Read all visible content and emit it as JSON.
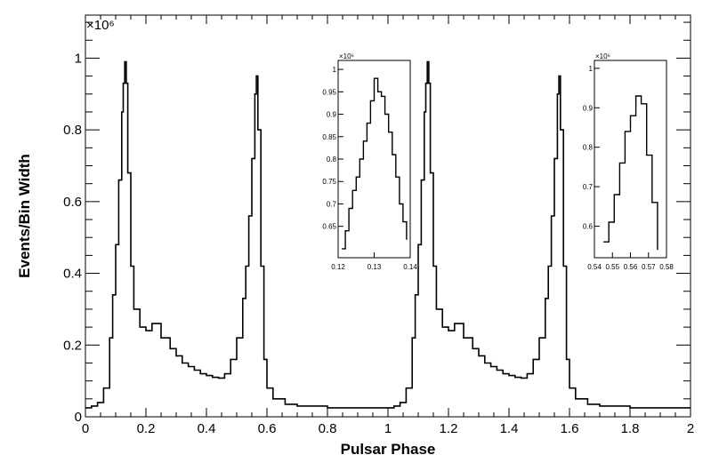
{
  "chart_data": {
    "type": "line",
    "xlabel": "Pulsar Phase",
    "ylabel": "Events/Bin Width",
    "y_multiplier": "×10⁶",
    "xlim": [
      0,
      2
    ],
    "ylim": [
      0,
      1.12
    ],
    "x_ticks": [
      0,
      0.2,
      0.4,
      0.6,
      0.8,
      1,
      1.2,
      1.4,
      1.6,
      1.8,
      2
    ],
    "x_tick_labels": [
      "0",
      "0.2",
      "0.4",
      "0.6",
      "0.8",
      "1",
      "1.2",
      "1.4",
      "1.6",
      "1.8",
      "2"
    ],
    "y_ticks": [
      0,
      0.2,
      0.4,
      0.6,
      0.8,
      1
    ],
    "y_tick_labels": [
      "0",
      "0.2",
      "0.4",
      "0.6",
      "0.8",
      "1"
    ],
    "grid": false,
    "series": [
      {
        "style": "step histogram",
        "x": [
          0.0,
          0.02,
          0.04,
          0.06,
          0.08,
          0.09,
          0.1,
          0.11,
          0.12,
          0.125,
          0.13,
          0.135,
          0.14,
          0.15,
          0.16,
          0.18,
          0.2,
          0.22,
          0.25,
          0.28,
          0.3,
          0.32,
          0.34,
          0.36,
          0.38,
          0.4,
          0.42,
          0.44,
          0.46,
          0.48,
          0.5,
          0.52,
          0.53,
          0.54,
          0.55,
          0.56,
          0.565,
          0.57,
          0.58,
          0.59,
          0.6,
          0.62,
          0.66,
          0.7,
          0.8,
          0.9,
          1.0,
          1.02,
          1.04,
          1.06,
          1.08,
          1.09,
          1.1,
          1.11,
          1.12,
          1.125,
          1.13,
          1.135,
          1.14,
          1.15,
          1.16,
          1.18,
          1.2,
          1.22,
          1.25,
          1.28,
          1.3,
          1.32,
          1.34,
          1.36,
          1.38,
          1.4,
          1.42,
          1.44,
          1.46,
          1.48,
          1.5,
          1.52,
          1.53,
          1.54,
          1.55,
          1.56,
          1.565,
          1.57,
          1.58,
          1.59,
          1.6,
          1.62,
          1.66,
          1.7,
          1.8,
          1.9,
          2.0
        ],
        "y": [
          0.025,
          0.03,
          0.04,
          0.08,
          0.22,
          0.34,
          0.48,
          0.66,
          0.85,
          0.93,
          0.99,
          0.93,
          0.68,
          0.42,
          0.3,
          0.25,
          0.24,
          0.26,
          0.22,
          0.19,
          0.17,
          0.15,
          0.14,
          0.13,
          0.12,
          0.115,
          0.11,
          0.108,
          0.12,
          0.16,
          0.22,
          0.33,
          0.42,
          0.56,
          0.72,
          0.9,
          0.95,
          0.8,
          0.42,
          0.16,
          0.08,
          0.05,
          0.035,
          0.03,
          0.025,
          0.025,
          0.025,
          0.03,
          0.04,
          0.08,
          0.22,
          0.34,
          0.48,
          0.66,
          0.85,
          0.93,
          0.99,
          0.93,
          0.68,
          0.42,
          0.3,
          0.25,
          0.24,
          0.26,
          0.22,
          0.19,
          0.17,
          0.15,
          0.14,
          0.13,
          0.12,
          0.115,
          0.11,
          0.108,
          0.12,
          0.16,
          0.22,
          0.33,
          0.42,
          0.56,
          0.72,
          0.9,
          0.95,
          0.8,
          0.42,
          0.16,
          0.08,
          0.05,
          0.035,
          0.03,
          0.025,
          0.025,
          0.025
        ]
      }
    ],
    "insets": [
      {
        "xlim": [
          0.12,
          0.14
        ],
        "ylim": [
          0.58,
          1.02
        ],
        "x_ticks": [
          0.12,
          0.13,
          0.14
        ],
        "x_tick_labels": [
          "0.12",
          "0.13",
          "0.14"
        ],
        "y_ticks": [
          0.65,
          0.7,
          0.75,
          0.8,
          0.85,
          0.9,
          0.95,
          1
        ],
        "y_tick_labels": [
          "0.65",
          "0.7",
          "0.75",
          "0.8",
          "0.85",
          "0.9",
          "0.95",
          "1"
        ],
        "y_multiplier": "×10⁶",
        "x": [
          0.121,
          0.122,
          0.123,
          0.124,
          0.125,
          0.126,
          0.127,
          0.128,
          0.129,
          0.13,
          0.131,
          0.132,
          0.133,
          0.134,
          0.135,
          0.136,
          0.137,
          0.138,
          0.139
        ],
        "y": [
          0.6,
          0.64,
          0.69,
          0.73,
          0.76,
          0.8,
          0.84,
          0.88,
          0.93,
          0.98,
          0.95,
          0.94,
          0.9,
          0.86,
          0.81,
          0.76,
          0.7,
          0.66,
          0.62
        ]
      },
      {
        "xlim": [
          0.54,
          0.58
        ],
        "ylim": [
          0.52,
          1.02
        ],
        "x_ticks": [
          0.54,
          0.55,
          0.56,
          0.57,
          0.58
        ],
        "x_tick_labels": [
          "0.54",
          "0.55",
          "0.56",
          "0.57",
          "0.58"
        ],
        "y_ticks": [
          0.6,
          0.7,
          0.8,
          0.9,
          1
        ],
        "y_tick_labels": [
          "0.6",
          "0.7",
          "0.8",
          "0.9",
          "1"
        ],
        "y_multiplier": "×10⁶",
        "x": [
          0.545,
          0.548,
          0.551,
          0.554,
          0.557,
          0.56,
          0.563,
          0.566,
          0.569,
          0.572,
          0.575
        ],
        "y": [
          0.56,
          0.61,
          0.68,
          0.76,
          0.84,
          0.88,
          0.93,
          0.91,
          0.78,
          0.66,
          0.54
        ]
      }
    ]
  }
}
